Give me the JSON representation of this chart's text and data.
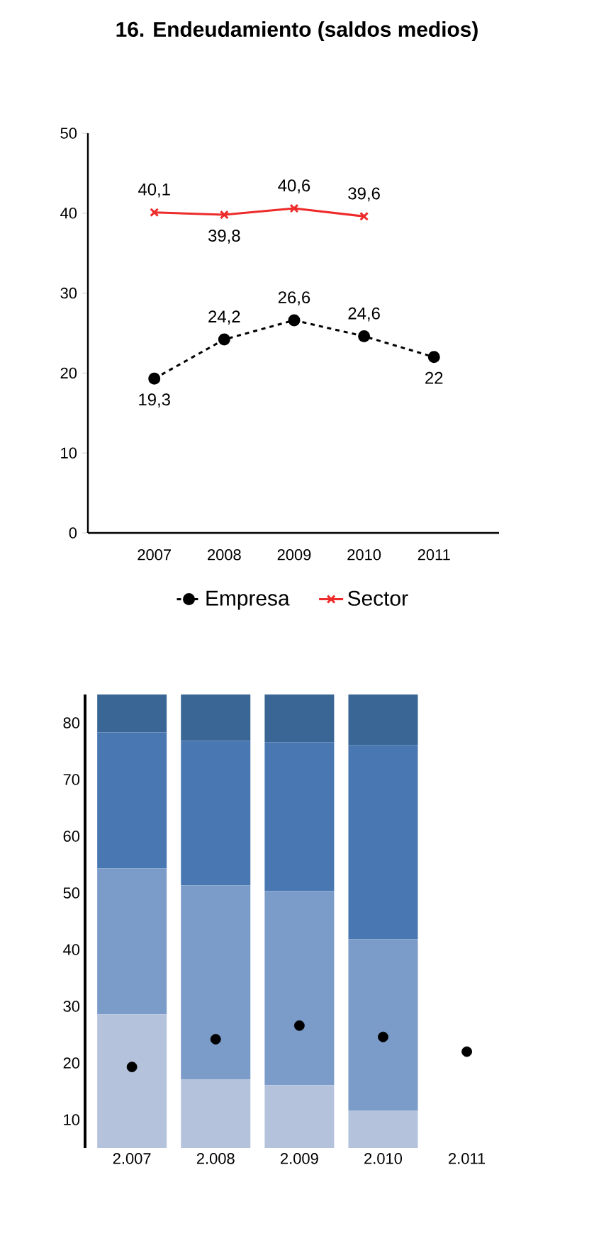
{
  "chart_data": [
    {
      "type": "line",
      "title": "16. Endeudamiento (saldos medios)",
      "categories": [
        "2007",
        "2008",
        "2009",
        "2010",
        "2011"
      ],
      "ylim": [
        0,
        50
      ],
      "yticks": [
        0,
        10,
        20,
        30,
        40,
        50
      ],
      "grid": false,
      "legend": "bottom",
      "series": [
        {
          "name": "Empresa",
          "color": "#000000",
          "marker": "circle",
          "line_style": "dashed",
          "values": [
            19.3,
            24.2,
            26.6,
            24.6,
            22
          ],
          "value_labels": [
            "19,3",
            "24,2",
            "26,6",
            "24,6",
            "22"
          ]
        },
        {
          "name": "Sector",
          "color": "#ee2b2b",
          "marker": "cross",
          "line_style": "solid",
          "values": [
            40.1,
            39.8,
            40.6,
            39.6,
            null
          ],
          "value_labels": [
            "40,1",
            "39,8",
            "40,6",
            "39,6",
            null
          ]
        }
      ]
    },
    {
      "type": "bar",
      "stacked": true,
      "categories": [
        "2.007",
        "2.008",
        "2.009",
        "2.010",
        "2.011"
      ],
      "ylim": [
        5,
        85
      ],
      "yticks": [
        10,
        20,
        30,
        40,
        50,
        60,
        70,
        80
      ],
      "grid": false,
      "series": [
        {
          "color": "#b4c2dc",
          "values": [
            28.6,
            17.1,
            16.1,
            11.6,
            null
          ]
        },
        {
          "color": "#7b9bc8",
          "values": [
            25.7,
            34.2,
            34.2,
            30.2,
            null
          ]
        },
        {
          "color": "#4877b2",
          "values": [
            24.0,
            25.5,
            26.3,
            34.3,
            null
          ]
        },
        {
          "color": "#396694",
          "values": [
            6.7,
            8.2,
            8.4,
            8.9,
            null
          ]
        },
        {
          "type": "scatter",
          "color": "#000000",
          "marker": "circle",
          "x": [
            "2.007",
            "2.008",
            "2.009",
            "2.010",
            "2.011"
          ],
          "values": [
            19.3,
            24.2,
            26.6,
            24.6,
            22
          ]
        }
      ]
    }
  ]
}
